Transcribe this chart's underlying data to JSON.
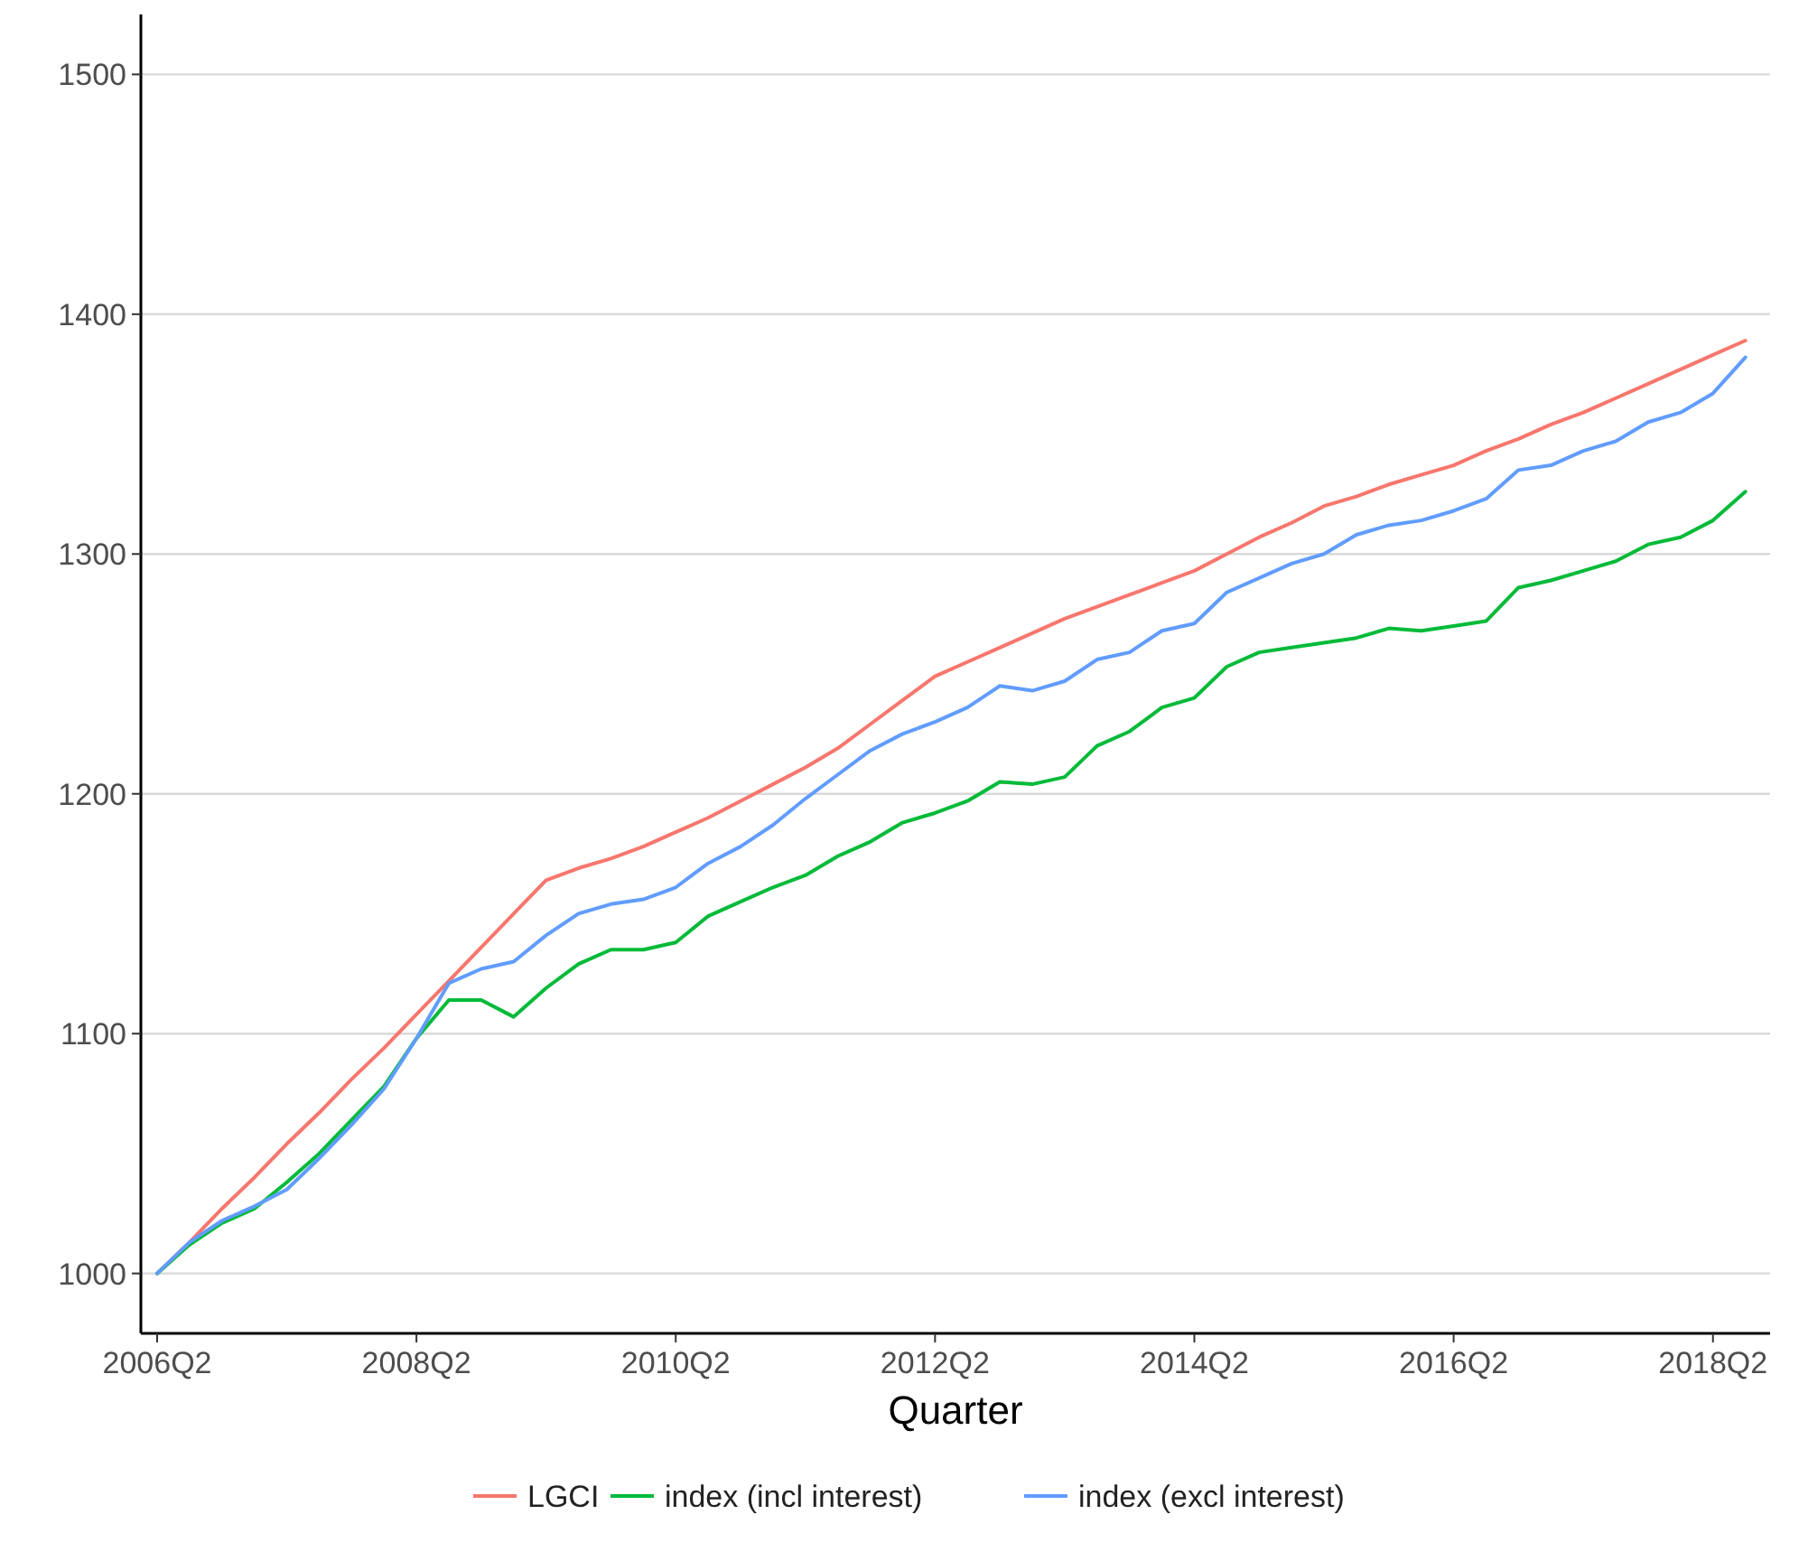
{
  "chart_data": {
    "type": "line",
    "xlabel": "Quarter",
    "categories": [
      "2006Q2",
      null,
      null,
      null,
      null,
      null,
      null,
      null,
      "2008Q2",
      null,
      null,
      null,
      null,
      null,
      null,
      null,
      "2010Q2",
      null,
      null,
      null,
      null,
      null,
      null,
      null,
      "2012Q2",
      null,
      null,
      null,
      null,
      null,
      null,
      null,
      "2014Q2",
      null,
      null,
      null,
      null,
      null,
      null,
      null,
      "2016Q2",
      null,
      null,
      null,
      null,
      null,
      null,
      null,
      "2018Q2",
      null
    ],
    "ylim": [
      975,
      1525
    ],
    "yticks": [
      1000,
      1100,
      1200,
      1300,
      1400,
      1500
    ],
    "grid": "y",
    "legend": "bottom",
    "line_style": "solid",
    "marker": "none",
    "series": [
      {
        "name": "LGCI",
        "color": "#f8766d",
        "values": [
          1000,
          1013,
          1027,
          1040,
          1054,
          1067,
          1081,
          1094,
          1108,
          1122,
          1136,
          1150,
          1164,
          1169,
          1173,
          1178,
          1184,
          1190,
          1197,
          1204,
          1211,
          1219,
          1229,
          1239,
          1249,
          1255,
          1261,
          1267,
          1273,
          1278,
          1283,
          1288,
          1293,
          1300,
          1307,
          1313,
          1320,
          1324,
          1329,
          1333,
          1337,
          1343,
          1348,
          1354,
          1359,
          1365,
          1371,
          1377,
          1383,
          1389
        ]
      },
      {
        "name": "index (incl interest)",
        "color": "#00ba38",
        "values": [
          1000,
          1012,
          1021,
          1027,
          1038,
          1050,
          1064,
          1078,
          1098,
          1114,
          1114,
          1107,
          1119,
          1129,
          1135,
          1135,
          1138,
          1149,
          1155,
          1161,
          1166,
          1174,
          1180,
          1188,
          1192,
          1197,
          1205,
          1204,
          1207,
          1220,
          1226,
          1236,
          1240,
          1253,
          1259,
          1261,
          1263,
          1265,
          1269,
          1268,
          1270,
          1272,
          1286,
          1289,
          1293,
          1297,
          1304,
          1307,
          1314,
          1326
        ]
      },
      {
        "name": "index (excl interest)",
        "color": "#619cff",
        "values": [
          1000,
          1013,
          1022,
          1028,
          1035,
          1048,
          1062,
          1077,
          1098,
          1121,
          1127,
          1130,
          1141,
          1150,
          1154,
          1156,
          1161,
          1171,
          1178,
          1187,
          1198,
          1208,
          1218,
          1225,
          1230,
          1236,
          1245,
          1243,
          1247,
          1256,
          1259,
          1268,
          1271,
          1284,
          1290,
          1296,
          1300,
          1308,
          1312,
          1314,
          1318,
          1323,
          1335,
          1337,
          1343,
          1347,
          1355,
          1359,
          1367,
          1382
        ]
      }
    ]
  }
}
